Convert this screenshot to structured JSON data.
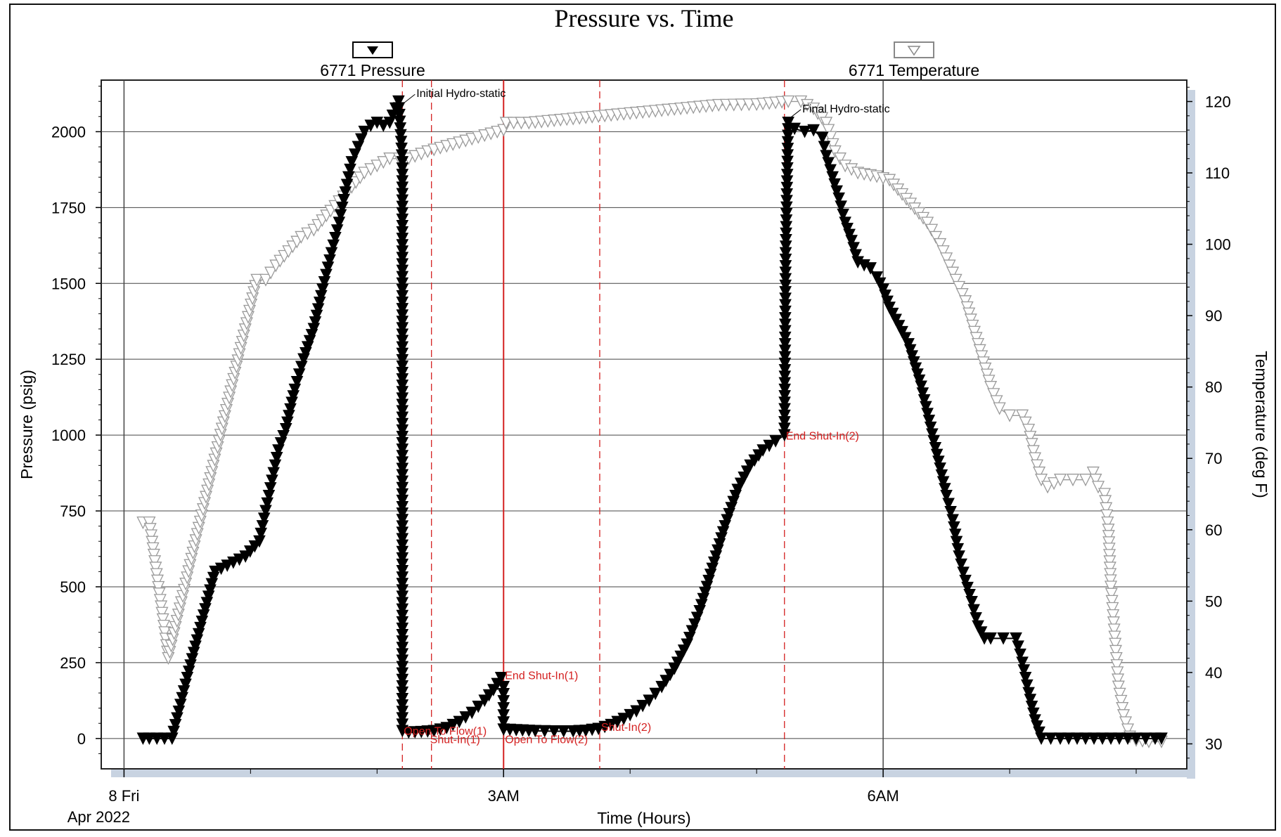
{
  "chart_data": {
    "type": "line",
    "title": "Pressure vs. Time",
    "xlabel": "Time (Hours)",
    "ylabel_left": "Pressure (psig)",
    "ylabel_right": "Temperature (deg F)",
    "x_unit": "hours after 0:00 Apr 8 2022",
    "xlim": [
      -0.18,
      8.4
    ],
    "ylim_left": [
      -100,
      2170
    ],
    "ylim_right": [
      26.5,
      123
    ],
    "x_ticks": [
      {
        "x": 0,
        "label": "8 Fri",
        "sublabel": "Apr 2022"
      },
      {
        "x": 3,
        "label": "3AM",
        "sublabel": ""
      },
      {
        "x": 6,
        "label": "6AM",
        "sublabel": ""
      }
    ],
    "y_ticks_left": [
      0,
      250,
      500,
      750,
      1000,
      1250,
      1500,
      1750,
      2000
    ],
    "y_ticks_right": [
      30,
      40,
      50,
      60,
      70,
      80,
      90,
      100,
      110,
      120
    ],
    "grid": true,
    "legend_position": "top",
    "colors": {
      "pressure": "#000000",
      "temperature": "#9a9a9a",
      "events": "#d42020",
      "grid": "#444444",
      "shadow": "#c8d3e1"
    },
    "series": [
      {
        "name": "6771 Pressure",
        "axis": "left",
        "marker": "filled-down-triangle",
        "points": [
          [
            0.15,
            0
          ],
          [
            0.2,
            0
          ],
          [
            0.32,
            0
          ],
          [
            0.38,
            0
          ],
          [
            0.5,
            200
          ],
          [
            0.72,
            550
          ],
          [
            0.96,
            600
          ],
          [
            1.07,
            650
          ],
          [
            1.12,
            750
          ],
          [
            1.17,
            850
          ],
          [
            1.22,
            950
          ],
          [
            1.28,
            1020
          ],
          [
            1.35,
            1150
          ],
          [
            1.42,
            1250
          ],
          [
            1.5,
            1350
          ],
          [
            1.57,
            1480
          ],
          [
            1.64,
            1600
          ],
          [
            1.7,
            1700
          ],
          [
            1.75,
            1800
          ],
          [
            1.8,
            1900
          ],
          [
            1.85,
            1950
          ],
          [
            1.9,
            2000
          ],
          [
            1.95,
            2020
          ],
          [
            2.0,
            2030
          ],
          [
            2.05,
            2020
          ],
          [
            2.1,
            2030
          ],
          [
            2.17,
            2100
          ],
          [
            2.2,
            1900
          ],
          [
            2.2,
            1100
          ],
          [
            2.2,
            25
          ],
          [
            2.25,
            20
          ],
          [
            2.35,
            22
          ],
          [
            2.45,
            25
          ],
          [
            2.55,
            35
          ],
          [
            2.65,
            55
          ],
          [
            2.75,
            85
          ],
          [
            2.85,
            125
          ],
          [
            2.92,
            160
          ],
          [
            2.98,
            200
          ],
          [
            3.0,
            170
          ],
          [
            3.0,
            30
          ],
          [
            3.1,
            28
          ],
          [
            3.25,
            25
          ],
          [
            3.4,
            24
          ],
          [
            3.55,
            24
          ],
          [
            3.65,
            26
          ],
          [
            3.75,
            32
          ],
          [
            3.85,
            45
          ],
          [
            3.95,
            65
          ],
          [
            4.05,
            90
          ],
          [
            4.15,
            125
          ],
          [
            4.25,
            170
          ],
          [
            4.35,
            230
          ],
          [
            4.45,
            310
          ],
          [
            4.55,
            420
          ],
          [
            4.65,
            560
          ],
          [
            4.75,
            700
          ],
          [
            4.85,
            820
          ],
          [
            4.95,
            900
          ],
          [
            5.05,
            950
          ],
          [
            5.15,
            980
          ],
          [
            5.22,
            1000
          ],
          [
            5.23,
            1600
          ],
          [
            5.25,
            2030
          ],
          [
            5.3,
            2010
          ],
          [
            5.38,
            2000
          ],
          [
            5.45,
            2005
          ],
          [
            5.52,
            1980
          ],
          [
            5.55,
            1920
          ],
          [
            5.6,
            1850
          ],
          [
            5.65,
            1780
          ],
          [
            5.7,
            1700
          ],
          [
            5.75,
            1640
          ],
          [
            5.8,
            1570
          ],
          [
            5.85,
            1560
          ],
          [
            5.9,
            1550
          ],
          [
            5.95,
            1520
          ],
          [
            6.0,
            1480
          ],
          [
            6.05,
            1420
          ],
          [
            6.1,
            1380
          ],
          [
            6.2,
            1300
          ],
          [
            6.3,
            1160
          ],
          [
            6.4,
            980
          ],
          [
            6.5,
            800
          ],
          [
            6.55,
            720
          ],
          [
            6.6,
            600
          ],
          [
            6.65,
            520
          ],
          [
            6.7,
            450
          ],
          [
            6.75,
            370
          ],
          [
            6.8,
            330
          ],
          [
            6.85,
            330
          ],
          [
            6.95,
            330
          ],
          [
            7.05,
            330
          ],
          [
            7.1,
            250
          ],
          [
            7.15,
            150
          ],
          [
            7.2,
            60
          ],
          [
            7.25,
            0
          ],
          [
            7.4,
            0
          ],
          [
            7.6,
            0
          ],
          [
            7.8,
            0
          ],
          [
            8.0,
            0
          ],
          [
            8.15,
            0
          ],
          [
            8.2,
            0
          ]
        ]
      },
      {
        "name": "6771 Temperature",
        "axis": "right",
        "marker": "hollow-down-triangle",
        "points": [
          [
            0.15,
            61
          ],
          [
            0.2,
            61
          ],
          [
            0.35,
            42
          ],
          [
            1.05,
            95
          ],
          [
            1.12,
            95
          ],
          [
            1.2,
            97
          ],
          [
            1.3,
            99
          ],
          [
            1.4,
            101
          ],
          [
            1.5,
            102
          ],
          [
            1.6,
            104
          ],
          [
            1.7,
            106
          ],
          [
            1.8,
            108
          ],
          [
            1.9,
            110
          ],
          [
            2.0,
            111
          ],
          [
            2.1,
            112
          ],
          [
            2.25,
            112
          ],
          [
            2.4,
            113
          ],
          [
            2.6,
            114
          ],
          [
            2.8,
            115
          ],
          [
            3.0,
            116
          ],
          [
            3.02,
            117
          ],
          [
            3.2,
            117
          ],
          [
            3.5,
            117.5
          ],
          [
            3.8,
            118
          ],
          [
            4.1,
            118.5
          ],
          [
            4.4,
            119
          ],
          [
            4.7,
            119.5
          ],
          [
            5.0,
            119.6
          ],
          [
            5.25,
            120
          ],
          [
            5.35,
            120
          ],
          [
            5.45,
            119
          ],
          [
            5.55,
            117
          ],
          [
            5.62,
            113
          ],
          [
            5.7,
            111
          ],
          [
            5.8,
            110
          ],
          [
            5.95,
            109.5
          ],
          [
            6.05,
            109
          ],
          [
            6.15,
            107
          ],
          [
            6.25,
            105
          ],
          [
            6.35,
            103
          ],
          [
            6.45,
            100
          ],
          [
            6.55,
            96
          ],
          [
            6.65,
            92
          ],
          [
            6.75,
            86
          ],
          [
            6.85,
            80
          ],
          [
            6.92,
            77
          ],
          [
            7.0,
            76
          ],
          [
            7.1,
            76
          ],
          [
            7.15,
            74
          ],
          [
            7.2,
            70
          ],
          [
            7.25,
            67
          ],
          [
            7.3,
            66
          ],
          [
            7.4,
            67
          ],
          [
            7.5,
            67
          ],
          [
            7.6,
            67
          ],
          [
            7.66,
            68
          ],
          [
            7.7,
            66
          ],
          [
            7.75,
            65
          ],
          [
            7.78,
            60
          ],
          [
            7.8,
            52
          ],
          [
            7.83,
            45
          ],
          [
            7.86,
            38
          ],
          [
            7.9,
            34
          ],
          [
            7.95,
            31
          ],
          [
            8.0,
            30.5
          ],
          [
            8.1,
            30.3
          ],
          [
            8.2,
            30.3
          ]
        ]
      }
    ],
    "event_lines": [
      {
        "x": 2.2,
        "label": "Open To Flow(1)",
        "style": "dashed"
      },
      {
        "x": 2.43,
        "label": "Shut-In(1)",
        "style": "dashed"
      },
      {
        "x": 3.0,
        "label": "End Shut-In(1)",
        "style": "solid"
      },
      {
        "x": 3.0,
        "label": "Open To Flow(2)",
        "style": "solid"
      },
      {
        "x": 3.76,
        "label": "Shut-In(2)",
        "style": "dashed"
      },
      {
        "x": 5.22,
        "label": "End Shut-In(2)",
        "style": "dashed"
      }
    ],
    "annotations": [
      {
        "text": "Initial Hydro-static",
        "x": 2.2,
        "y": 2100
      },
      {
        "text": "Final Hydro-static",
        "x": 5.25,
        "y": 2050
      }
    ]
  }
}
